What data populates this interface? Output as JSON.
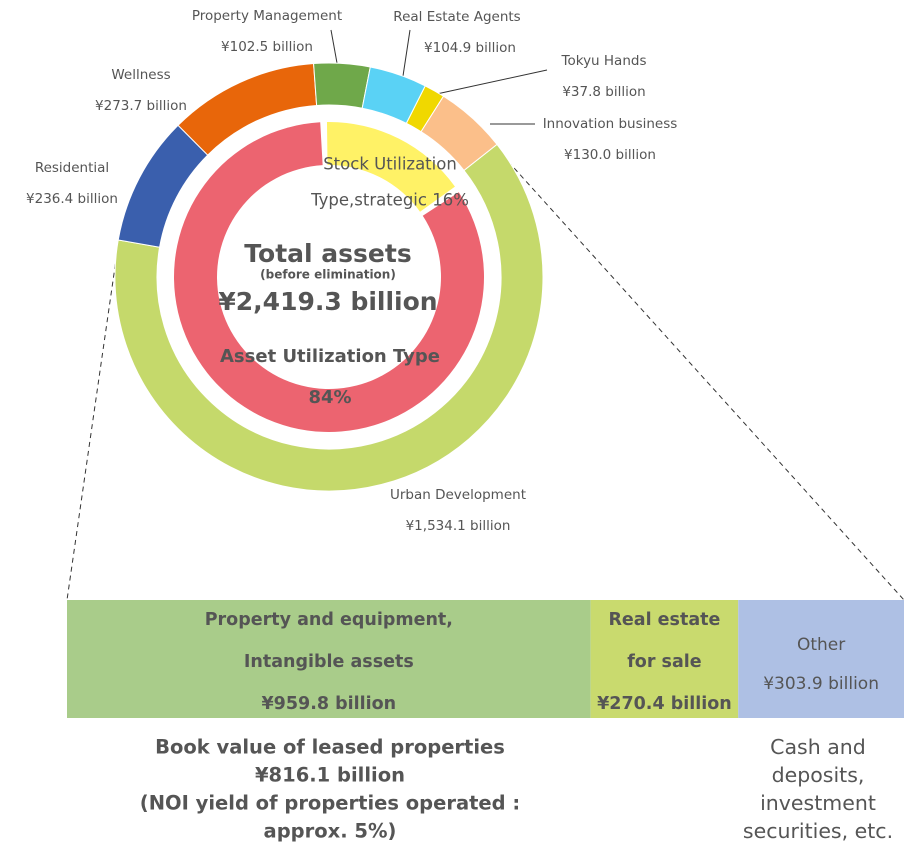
{
  "chart_data": [
    {
      "type": "donut",
      "categories": [
        "Urban Development",
        "Residential",
        "Wellness",
        "Property Management",
        "Real Estate Agents",
        "Tokyu Hands",
        "Innovation business"
      ],
      "values": [
        1534.1,
        236.4,
        273.7,
        102.5,
        104.9,
        37.8,
        130.0
      ],
      "value_labels": [
        "¥1,534.1 billion",
        "¥236.4 billion",
        "¥273.7 billion",
        "¥102.5 billion",
        "¥104.9 billion",
        "¥37.8 billion",
        "¥130.0 billion"
      ],
      "colors": [
        "#c5d96b",
        "#3a5fad",
        "#e8660a",
        "#6fa84a",
        "#5ad2f5",
        "#f0d800",
        "#fbbf8a"
      ]
    },
    {
      "type": "donut",
      "categories": [
        "Stock Utilization",
        "Asset Utilization Type"
      ],
      "values": [
        16,
        84
      ],
      "value_labels": [
        "Type,strategic 16%",
        "84%"
      ],
      "colors": [
        "#fff266",
        "#ec6470"
      ],
      "center_text": [
        "Total assets",
        "(before elimination)",
        "¥2,419.3 billion"
      ]
    },
    {
      "type": "stacked-bar",
      "categories": [
        [
          "Property and equipment,",
          "Intangible assets"
        ],
        [
          "Real estate",
          "for sale"
        ],
        [
          "Other"
        ]
      ],
      "values": [
        959.8,
        270.4,
        303.9
      ],
      "value_labels": [
        "¥959.8 billion",
        "¥270.4 billion",
        "¥303.9 billion"
      ],
      "colors": [
        "#a9cc8a",
        "#c9da6e",
        "#aec0e4"
      ],
      "annotations": [
        [
          "Book value of leased properties",
          "¥816.1 billion",
          "(NOI yield of properties operated :",
          "approx. 5%)"
        ],
        [
          "Cash and",
          "deposits,",
          "investment",
          "securities, etc."
        ]
      ]
    }
  ]
}
